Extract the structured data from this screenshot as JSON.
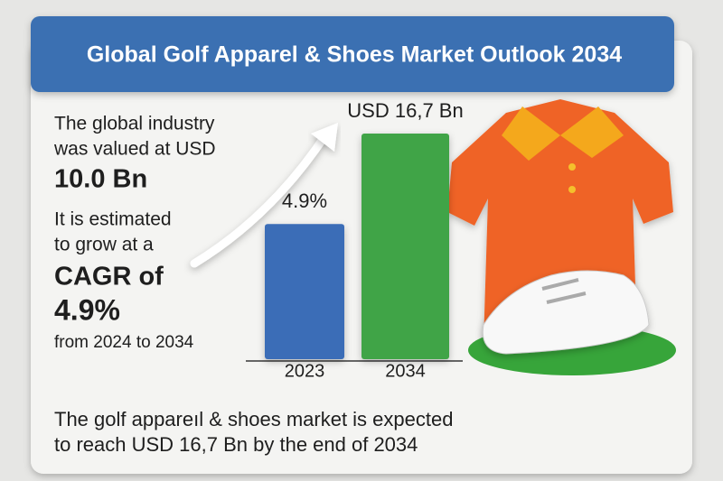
{
  "header": {
    "title": "Global Golf Apparel & Shoes Market Outlook 2034"
  },
  "text": {
    "valued": [
      "The global industry",
      "was valued at USD"
    ],
    "valued_amount": "10.0 Bn",
    "estimate": [
      "It is estimated",
      "to grow at a"
    ],
    "cagr_label": "CAGR of",
    "cagr": "4.9%",
    "period": "from 2024 to 2034"
  },
  "footer": [
    "The golf appareıl & shoes market is expected",
    "to reach USD 16,7 Bn by the end of 2034"
  ],
  "chart_data": {
    "type": "bar",
    "categories": [
      "2023",
      "2034"
    ],
    "values": [
      10.0,
      16.7
    ],
    "colors": [
      "#3a6db7",
      "#3fa447"
    ],
    "annotations": [
      "4.9%",
      "USD 16,7 Bn"
    ]
  }
}
